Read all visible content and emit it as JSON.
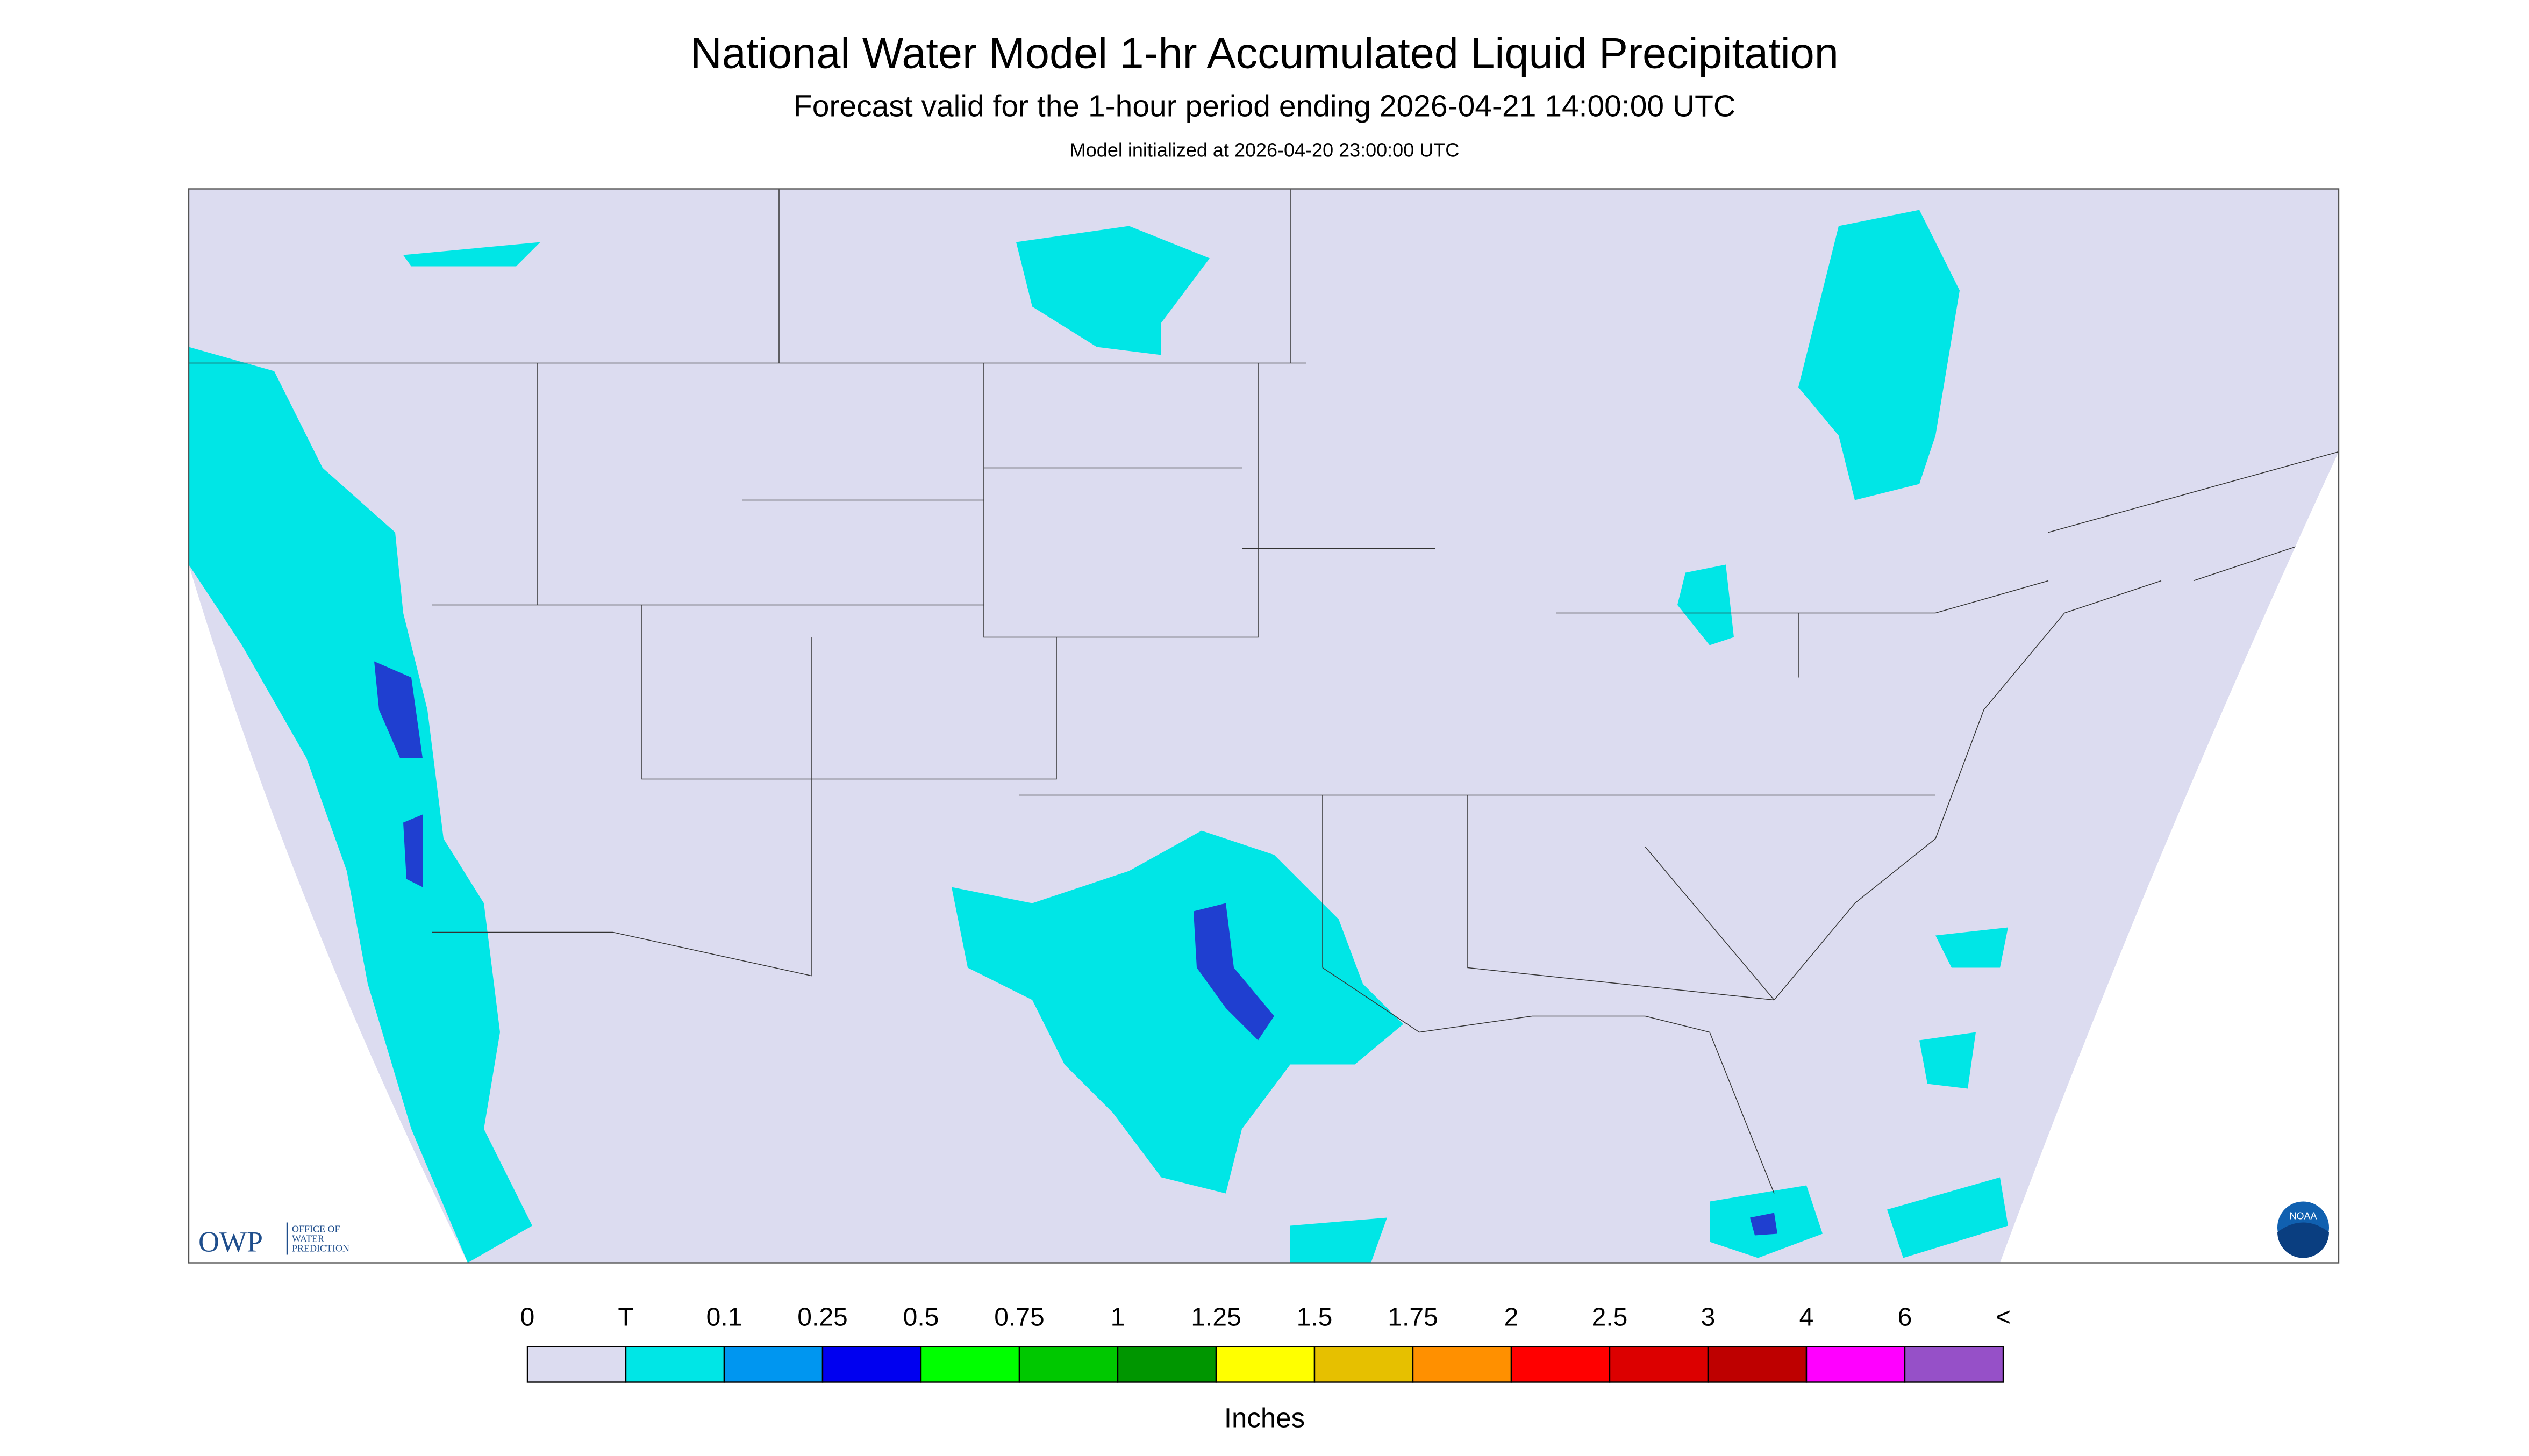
{
  "header": {
    "title": "National Water Model 1-hr Accumulated Liquid Precipitation",
    "subtitle": "Forecast valid for the 1-hour period ending 2026-04-21 14:00:00 UTC",
    "note": "Model initialized at 2026-04-20 23:00:00 UTC"
  },
  "logos": {
    "owp": "OWP",
    "owp_lines": [
      "OFFICE OF",
      "WATER",
      "PREDICTION"
    ],
    "noaa": "NOAA"
  },
  "legend": {
    "labels": [
      "0",
      "T",
      "0.1",
      "0.25",
      "0.5",
      "0.75",
      "1",
      "1.25",
      "1.5",
      "1.75",
      "2",
      "2.5",
      "3",
      "4",
      "6",
      "<"
    ],
    "colors": [
      "#dcdcf0",
      "#00e6e6",
      "#0096f0",
      "#0000f0",
      "#00ff00",
      "#00c800",
      "#009600",
      "#ffff00",
      "#e6c000",
      "#ff9000",
      "#ff0000",
      "#dc0000",
      "#be0000",
      "#ff00ff",
      "#9650c8"
    ],
    "unit": "Inches"
  }
}
